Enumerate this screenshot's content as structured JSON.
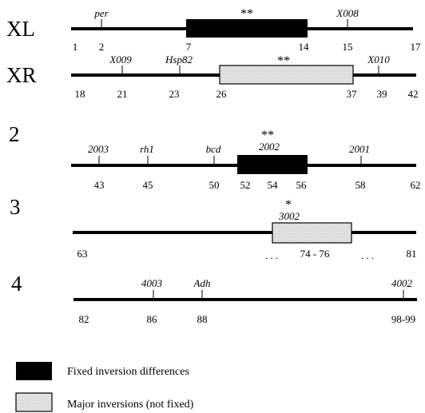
{
  "chromosomes": [
    {
      "label": "XL",
      "numbers": [
        "1",
        "2",
        "7",
        "14",
        "15",
        "17"
      ],
      "genes": [
        "per",
        "X008"
      ],
      "inversion": {
        "kind": "fixed",
        "stars": "**"
      }
    },
    {
      "label": "XR",
      "numbers": [
        "18",
        "21",
        "23",
        "26",
        "37",
        "39",
        "42"
      ],
      "genes": [
        "X009",
        "Hsp82",
        "X010"
      ],
      "inversion": {
        "kind": "major",
        "stars": "**"
      }
    },
    {
      "label": "2",
      "numbers": [
        "43",
        "45",
        "50",
        "52",
        "54",
        "56",
        "58",
        "62"
      ],
      "genes": [
        "2003",
        "rh1",
        "bcd",
        "2002",
        "2001"
      ],
      "inversion": {
        "kind": "fixed",
        "stars": "**"
      }
    },
    {
      "label": "3",
      "numbers": [
        "63",
        ". . .",
        "74 - 76",
        ". . .",
        "81"
      ],
      "genes": [
        "3002"
      ],
      "inversion": {
        "kind": "major",
        "stars": "*"
      }
    },
    {
      "label": "4",
      "numbers": [
        "82",
        "86",
        "88",
        "98-99"
      ],
      "genes": [
        "4003",
        "Adh",
        "4002"
      ],
      "inversion": null
    }
  ],
  "legend": {
    "fixed": "Fixed inversion differences",
    "major": "Major inversions (not fixed)"
  },
  "colors": {
    "line": "#000000",
    "fixed_fill": "#000000",
    "major_fill": "#e6e6e6",
    "stipple": "#9a9a9a"
  }
}
